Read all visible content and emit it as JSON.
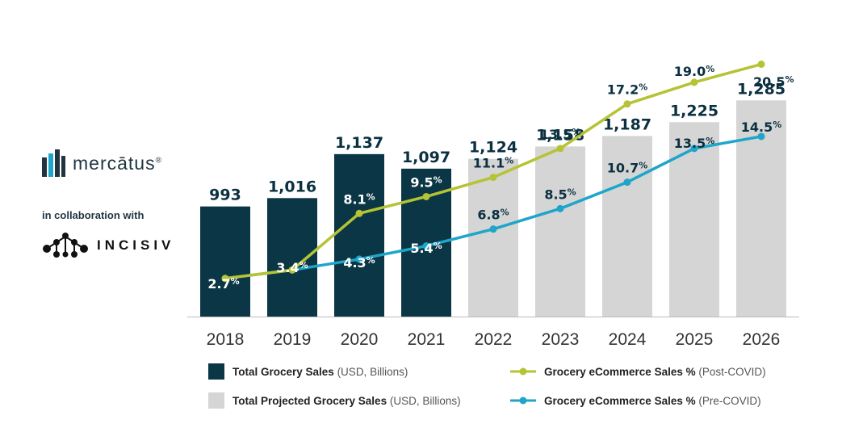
{
  "brand": {
    "company": "mercātus",
    "registered": "®",
    "collaboration": "in collaboration with",
    "partner": "INCISIV"
  },
  "colors": {
    "actual_bar": "#0b3645",
    "projected_bar": "#d5d5d5",
    "post_covid": "#b5c334",
    "pre_covid": "#1ea5c9"
  },
  "chart_data": {
    "type": "bar",
    "categories": [
      "2018",
      "2019",
      "2020",
      "2021",
      "2022",
      "2023",
      "2024",
      "2025",
      "2026"
    ],
    "bars": {
      "values": [
        993,
        1016,
        1137,
        1097,
        1124,
        1158,
        1187,
        1225,
        1285
      ],
      "labels": [
        "993",
        "1,016",
        "1,137",
        "1,097",
        "1,124",
        "1,158",
        "1,187",
        "1,225",
        "1,285"
      ],
      "kinds": [
        "actual",
        "actual",
        "actual",
        "actual",
        "projected",
        "projected",
        "projected",
        "projected",
        "projected"
      ]
    },
    "series": [
      {
        "name": "Grocery eCommerce Sales % (Post-COVID)",
        "values": [
          2.7,
          3.4,
          8.1,
          9.5,
          11.1,
          13.5,
          17.2,
          19.0,
          20.5
        ],
        "labels": [
          "2.7",
          "3.4",
          "8.1",
          "9.5",
          "11.1",
          "13.5",
          "17.2",
          "19.0",
          "20.5"
        ]
      },
      {
        "name": "Grocery eCommerce Sales % (Pre-COVID)",
        "values": [
          2.7,
          3.4,
          4.3,
          5.4,
          6.8,
          8.5,
          10.7,
          13.5,
          14.5
        ],
        "labels": [
          "",
          "",
          "4.3",
          "5.4",
          "6.8",
          "8.5",
          "10.7",
          "13.5",
          "14.5"
        ]
      }
    ],
    "percent_symbol": "%",
    "legend": [
      {
        "kind": "square",
        "color": "#0b3645",
        "bold": "Total Grocery Sales",
        "rest": " (USD, Billions)"
      },
      {
        "kind": "square",
        "color": "#d5d5d5",
        "bold": "Total Projected Grocery Sales",
        "rest": " (USD, Billions)"
      },
      {
        "kind": "line",
        "color": "#b5c334",
        "bold": "Grocery eCommerce Sales %",
        "rest": " (Post-COVID)"
      },
      {
        "kind": "line",
        "color": "#1ea5c9",
        "bold": "Grocery eCommerce Sales %",
        "rest": " (Pre-COVID)"
      }
    ],
    "legend_position": "bottom"
  }
}
